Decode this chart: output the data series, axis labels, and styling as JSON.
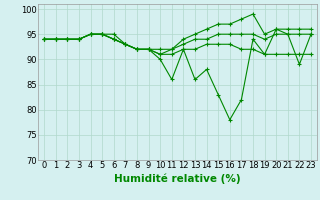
{
  "series": [
    [
      94,
      94,
      94,
      94,
      95,
      95,
      95,
      93,
      92,
      92,
      90,
      86,
      92,
      86,
      88,
      83,
      78,
      82,
      94,
      91,
      96,
      95,
      89,
      95
    ],
    [
      94,
      94,
      94,
      94,
      95,
      95,
      94,
      93,
      92,
      92,
      91,
      91,
      92,
      92,
      93,
      93,
      93,
      92,
      92,
      91,
      91,
      91,
      91,
      91
    ],
    [
      94,
      94,
      94,
      94,
      95,
      95,
      94,
      93,
      92,
      92,
      91,
      92,
      94,
      95,
      96,
      97,
      97,
      98,
      99,
      95,
      96,
      96,
      96,
      96
    ],
    [
      94,
      94,
      94,
      94,
      95,
      95,
      94,
      93,
      92,
      92,
      92,
      92,
      93,
      94,
      94,
      95,
      95,
      95,
      95,
      94,
      95,
      95,
      95,
      95
    ]
  ],
  "x": [
    0,
    1,
    2,
    3,
    4,
    5,
    6,
    7,
    8,
    9,
    10,
    11,
    12,
    13,
    14,
    15,
    16,
    17,
    18,
    19,
    20,
    21,
    22,
    23
  ],
  "line_color": "#008800",
  "bg_color": "#d5f0f0",
  "grid_color": "#b0d8cc",
  "xlabel": "Humidité relative (%)",
  "ylim": [
    70,
    101
  ],
  "yticks": [
    70,
    75,
    80,
    85,
    90,
    95,
    100
  ],
  "xticks": [
    0,
    1,
    2,
    3,
    4,
    5,
    6,
    7,
    8,
    9,
    10,
    11,
    12,
    13,
    14,
    15,
    16,
    17,
    18,
    19,
    20,
    21,
    22,
    23
  ],
  "tick_fontsize": 6,
  "xlabel_fontsize": 7.5
}
